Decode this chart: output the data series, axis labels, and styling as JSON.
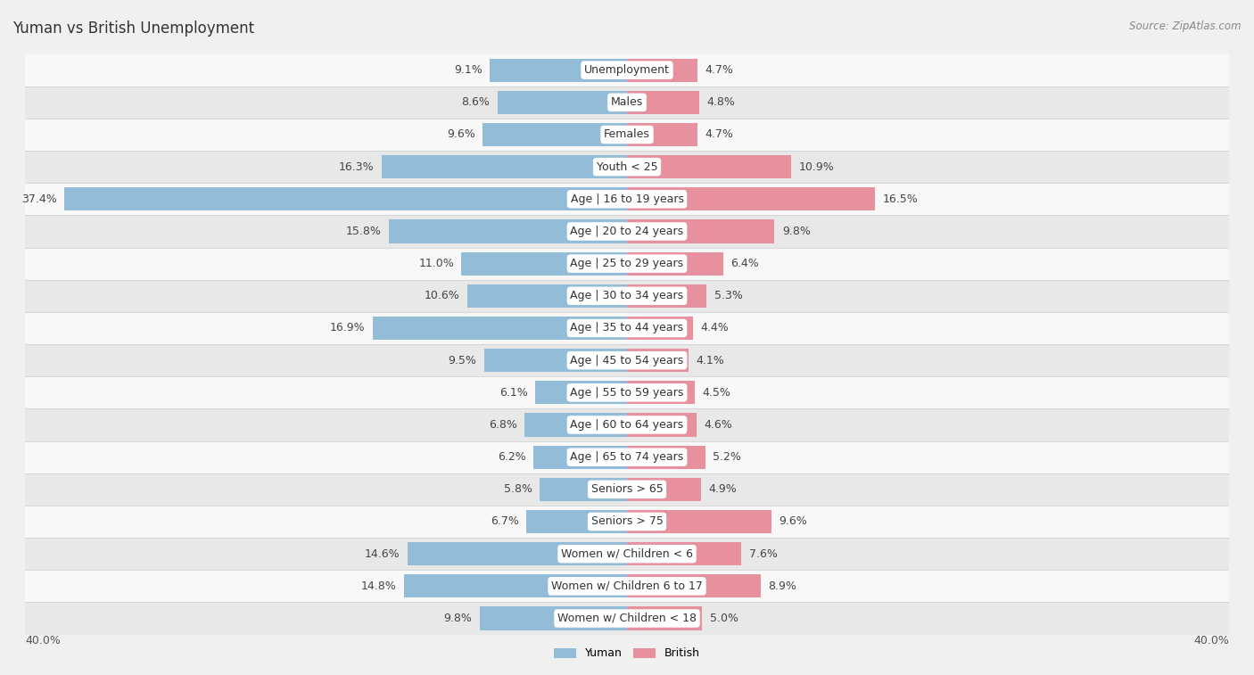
{
  "title": "Yuman vs British Unemployment",
  "source": "Source: ZipAtlas.com",
  "categories": [
    "Unemployment",
    "Males",
    "Females",
    "Youth < 25",
    "Age | 16 to 19 years",
    "Age | 20 to 24 years",
    "Age | 25 to 29 years",
    "Age | 30 to 34 years",
    "Age | 35 to 44 years",
    "Age | 45 to 54 years",
    "Age | 55 to 59 years",
    "Age | 60 to 64 years",
    "Age | 65 to 74 years",
    "Seniors > 65",
    "Seniors > 75",
    "Women w/ Children < 6",
    "Women w/ Children 6 to 17",
    "Women w/ Children < 18"
  ],
  "yuman_values": [
    9.1,
    8.6,
    9.6,
    16.3,
    37.4,
    15.8,
    11.0,
    10.6,
    16.9,
    9.5,
    6.1,
    6.8,
    6.2,
    5.8,
    6.7,
    14.6,
    14.8,
    9.8
  ],
  "british_values": [
    4.7,
    4.8,
    4.7,
    10.9,
    16.5,
    9.8,
    6.4,
    5.3,
    4.4,
    4.1,
    4.5,
    4.6,
    5.2,
    4.9,
    9.6,
    7.6,
    8.9,
    5.0
  ],
  "yuman_color": "#92bcd8",
  "british_color": "#e8919e",
  "axis_limit": 40.0,
  "bg_color": "#f0f0f0",
  "row_color_light": "#f8f8f8",
  "row_color_dark": "#e8e8e8",
  "bar_height": 0.72,
  "label_fontsize": 9.0,
  "title_fontsize": 12,
  "legend_yuman": "Yuman",
  "legend_british": "British"
}
